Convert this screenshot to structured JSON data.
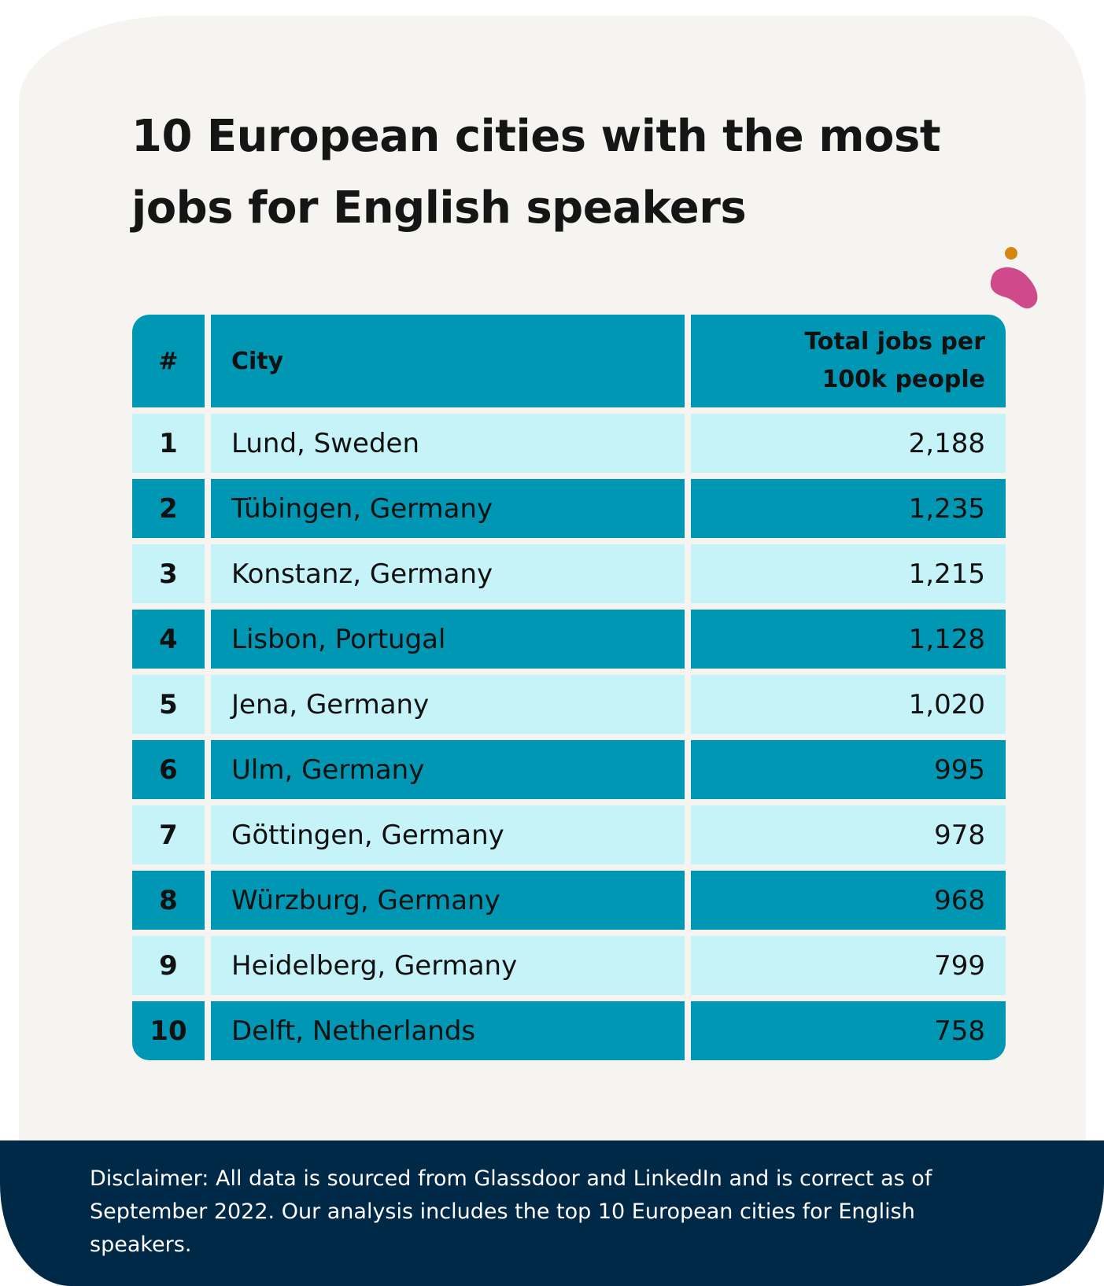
{
  "title_lines": [
    "10 European cities with the most",
    "jobs for English speakers"
  ],
  "colors": {
    "background": "#f5f4f1",
    "header_row": "#0097b4",
    "dark_row": "#0097b4",
    "light_row": "#c6f3f8",
    "footer": "#002847",
    "blob_pink": "#cf4a8b",
    "blob_dot": "#d4870f"
  },
  "decoration": {
    "blob": "blob-icon"
  },
  "chart_data": {
    "type": "table",
    "columns": [
      "#",
      "City",
      [
        "Total jobs per",
        "100k people"
      ]
    ],
    "rows": [
      {
        "rank": "1",
        "city": "Lund, Sweden",
        "value": "2,188"
      },
      {
        "rank": "2",
        "city": "Tübingen, Germany",
        "value": "1,235"
      },
      {
        "rank": "3",
        "city": "Konstanz, Germany",
        "value": "1,215"
      },
      {
        "rank": "4",
        "city": "Lisbon, Portugal",
        "value": "1,128"
      },
      {
        "rank": "5",
        "city": "Jena, Germany",
        "value": "1,020"
      },
      {
        "rank": "6",
        "city": "Ulm, Germany",
        "value": "995"
      },
      {
        "rank": "7",
        "city": "Göttingen, Germany",
        "value": "978"
      },
      {
        "rank": "8",
        "city": "Würzburg, Germany",
        "value": "968"
      },
      {
        "rank": "9",
        "city": "Heidelberg, Germany",
        "value": "799"
      },
      {
        "rank": "10",
        "city": "Delft, Netherlands",
        "value": "758"
      }
    ]
  },
  "footer": {
    "disclaimer": "Disclaimer: All data is sourced from Glassdoor and LinkedIn and is correct as of September 2022. Our analysis includes the top 10 European cities for English speakers."
  }
}
